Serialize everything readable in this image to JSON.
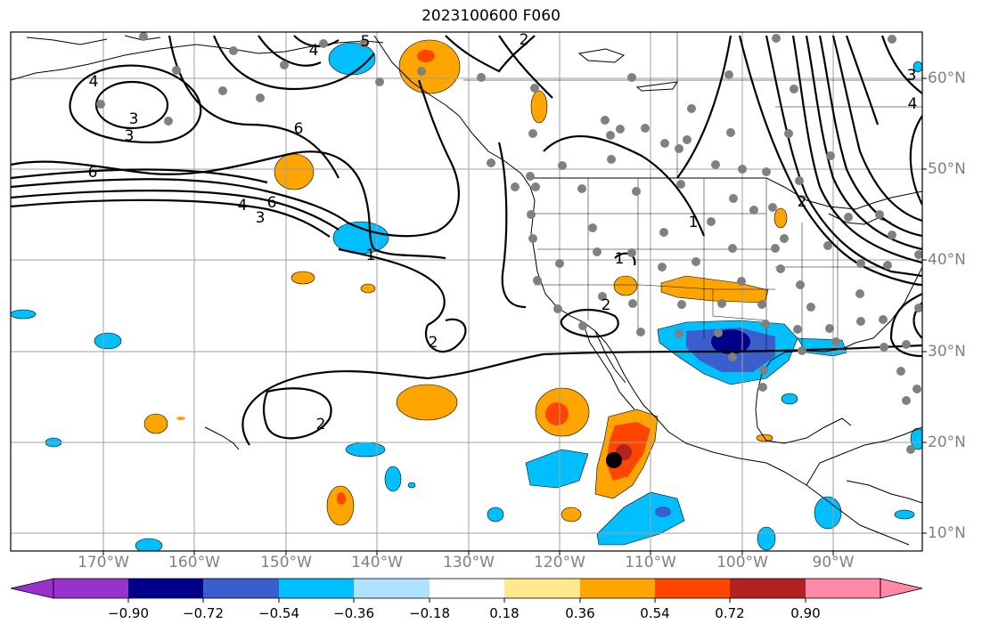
{
  "title": "2023100600 F060",
  "lon_labels": [
    "170°W",
    "160°W",
    "150°W",
    "140°W",
    "130°W",
    "120°W",
    "110°W",
    "100°W",
    "90°W"
  ],
  "lat_labels": [
    "60°N",
    "50°N",
    "40°N",
    "30°N",
    "20°N",
    "10°N"
  ],
  "colorbar": {
    "ticks": [
      "−0.90",
      "−0.72",
      "−0.54",
      "−0.36",
      "−0.18",
      "0.18",
      "0.36",
      "0.54",
      "0.72",
      "0.90"
    ],
    "colors": [
      "#9932cc",
      "#00008b",
      "#3a5fcd",
      "#00bfff",
      "#b0e2ff",
      "#ffffff",
      "#ffe98a",
      "#ffa500",
      "#ff4500",
      "#b22222",
      "#ff88a8"
    ]
  },
  "contour_labels": [
    "4",
    "3",
    "3",
    "4",
    "5",
    "6",
    "6",
    "6",
    "4",
    "3",
    "1",
    "2",
    "2",
    "2",
    "1",
    "2",
    "2",
    "1",
    "4",
    "3"
  ],
  "colors": {
    "station": "#808080",
    "contour": "#000000",
    "grid": "#a0a0a0",
    "labels": "#808080"
  }
}
